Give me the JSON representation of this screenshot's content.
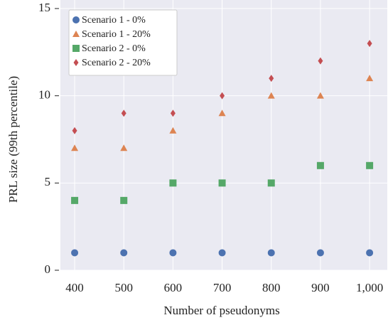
{
  "chart_data": {
    "type": "scatter",
    "xlabel": "Number of pseudonyms",
    "ylabel": "PRL size (99th percentile)",
    "x": [
      400,
      500,
      600,
      700,
      800,
      900,
      1000
    ],
    "series": [
      {
        "name": "Scenario 1 - 0%",
        "color": "#4c72b0",
        "marker": "circle",
        "values": [
          1,
          1,
          1,
          1,
          1,
          1,
          1
        ]
      },
      {
        "name": "Scenario 1 - 20%",
        "color": "#dd8452",
        "marker": "triangle",
        "values": [
          7,
          7,
          8,
          9,
          10,
          10,
          11
        ]
      },
      {
        "name": "Scenario 2 - 0%",
        "color": "#55a868",
        "marker": "square",
        "values": [
          4,
          4,
          5,
          5,
          5,
          6,
          6
        ]
      },
      {
        "name": "Scenario 2 - 20%",
        "color": "#c44e52",
        "marker": "diamond",
        "values": [
          8,
          9,
          9,
          10,
          11,
          12,
          13
        ]
      }
    ],
    "xlim": [
      371,
      1036
    ],
    "xticks": [
      400,
      500,
      600,
      700,
      800,
      900,
      {
        "value": 1000,
        "label": "1,000"
      }
    ],
    "ylim": [
      0,
      15
    ],
    "yticks": [
      0,
      5,
      10,
      15
    ],
    "grid": true,
    "legend": "upper-left"
  }
}
